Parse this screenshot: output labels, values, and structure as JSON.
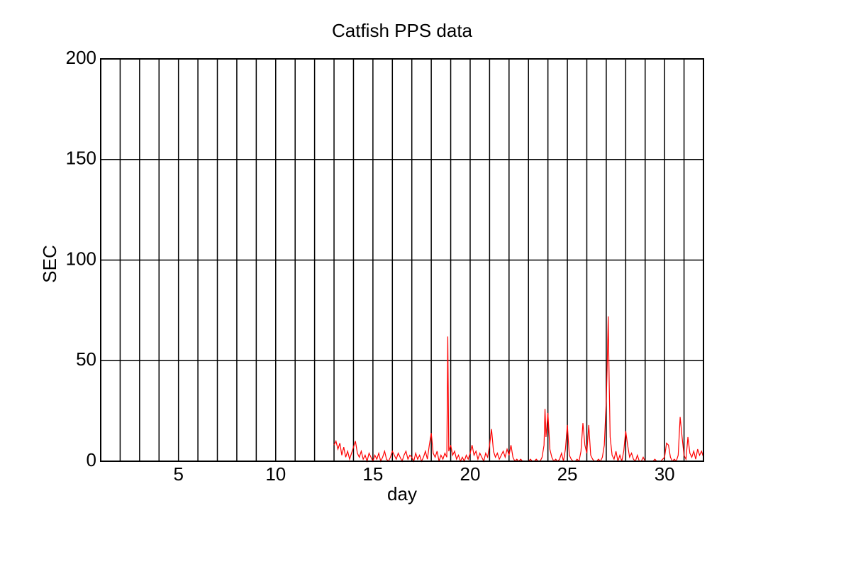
{
  "chart_data": {
    "type": "line",
    "title": "Catfish PPS data",
    "x_label": "day",
    "y_label": "SEC",
    "xlim": [
      1,
      32
    ],
    "ylim": [
      0,
      200
    ],
    "xticks": [
      5,
      10,
      15,
      20,
      25,
      30
    ],
    "xminorticks": [
      2,
      3,
      4,
      5,
      6,
      7,
      8,
      9,
      10,
      11,
      12,
      13,
      14,
      15,
      16,
      17,
      18,
      19,
      20,
      21,
      22,
      23,
      24,
      25,
      26,
      27,
      28,
      29,
      30,
      31
    ],
    "yticks": [
      0,
      50,
      100,
      150,
      200
    ],
    "grid": true,
    "x": [
      13.0,
      13.1,
      13.2,
      13.3,
      13.4,
      13.5,
      13.6,
      13.7,
      13.8,
      13.9,
      14.0,
      14.1,
      14.2,
      14.3,
      14.4,
      14.5,
      14.6,
      14.7,
      14.8,
      14.9,
      15.0,
      15.1,
      15.2,
      15.3,
      15.4,
      15.5,
      15.6,
      15.7,
      15.8,
      15.9,
      16.0,
      16.1,
      16.2,
      16.3,
      16.4,
      16.5,
      16.6,
      16.7,
      16.8,
      16.9,
      17.0,
      17.1,
      17.2,
      17.3,
      17.4,
      17.5,
      17.6,
      17.7,
      17.8,
      17.9,
      18.0,
      18.1,
      18.2,
      18.3,
      18.4,
      18.5,
      18.6,
      18.7,
      18.8,
      18.85,
      18.9,
      19.0,
      19.1,
      19.2,
      19.3,
      19.4,
      19.5,
      19.6,
      19.7,
      19.8,
      19.9,
      20.0,
      20.1,
      20.2,
      20.3,
      20.4,
      20.5,
      20.6,
      20.7,
      20.8,
      20.9,
      21.0,
      21.1,
      21.2,
      21.3,
      21.4,
      21.5,
      21.6,
      21.7,
      21.8,
      21.9,
      22.0,
      22.1,
      22.2,
      22.3,
      22.4,
      22.5,
      22.6,
      22.7,
      22.8,
      22.9,
      23.0,
      23.1,
      23.2,
      23.3,
      23.4,
      23.5,
      23.6,
      23.7,
      23.8,
      23.85,
      23.9,
      24.0,
      24.1,
      24.2,
      24.3,
      24.4,
      24.5,
      24.6,
      24.7,
      24.8,
      24.9,
      25.0,
      25.1,
      25.2,
      25.3,
      25.4,
      25.5,
      25.6,
      25.7,
      25.8,
      25.9,
      26.0,
      26.1,
      26.2,
      26.3,
      26.4,
      26.5,
      26.6,
      26.7,
      26.8,
      26.9,
      27.0,
      27.05,
      27.1,
      27.15,
      27.2,
      27.3,
      27.4,
      27.5,
      27.6,
      27.7,
      27.8,
      27.9,
      28.0,
      28.1,
      28.2,
      28.3,
      28.4,
      28.5,
      28.6,
      28.7,
      28.8,
      28.9,
      29.0,
      29.2,
      29.4,
      29.5,
      29.6,
      29.8,
      30.0,
      30.1,
      30.2,
      30.3,
      30.4,
      30.5,
      30.6,
      30.7,
      30.8,
      30.9,
      31.0,
      31.1,
      31.2,
      31.3,
      31.4,
      31.5,
      31.6,
      31.7,
      31.8,
      31.9,
      32.0
    ],
    "series": [
      {
        "color": "#ff0000",
        "values": [
          8,
          10,
          6,
          9,
          3,
          7,
          2,
          5,
          1,
          4,
          7,
          10,
          4,
          2,
          5,
          1,
          3,
          0,
          4,
          2,
          0,
          3,
          1,
          4,
          0,
          2,
          5,
          1,
          0,
          2,
          5,
          3,
          1,
          4,
          2,
          0,
          3,
          5,
          1,
          3,
          2,
          0,
          4,
          1,
          3,
          0,
          2,
          5,
          1,
          8,
          14,
          4,
          2,
          5,
          0,
          3,
          1,
          4,
          2,
          62,
          5,
          8,
          3,
          5,
          1,
          3,
          0,
          2,
          0,
          3,
          1,
          4,
          8,
          3,
          5,
          1,
          4,
          2,
          0,
          4,
          2,
          8,
          16,
          5,
          2,
          4,
          1,
          3,
          5,
          2,
          6,
          3,
          8,
          2,
          0,
          1,
          0,
          1,
          0,
          0,
          0,
          0,
          1,
          0,
          0,
          1,
          0,
          0,
          2,
          8,
          26,
          12,
          24,
          6,
          2,
          0,
          1,
          0,
          1,
          4,
          0,
          6,
          18,
          3,
          1,
          0,
          0,
          1,
          0,
          5,
          19,
          8,
          4,
          18,
          3,
          1,
          0,
          0,
          1,
          0,
          2,
          8,
          30,
          48,
          72,
          40,
          12,
          3,
          1,
          5,
          0,
          3,
          0,
          5,
          15,
          8,
          2,
          4,
          1,
          0,
          3,
          0,
          0,
          2,
          0,
          0,
          0,
          1,
          0,
          0,
          2,
          9,
          8,
          2,
          0,
          1,
          0,
          3,
          22,
          12,
          3,
          1,
          12,
          4,
          2,
          5,
          1,
          6,
          3,
          5,
          2
        ]
      }
    ]
  }
}
